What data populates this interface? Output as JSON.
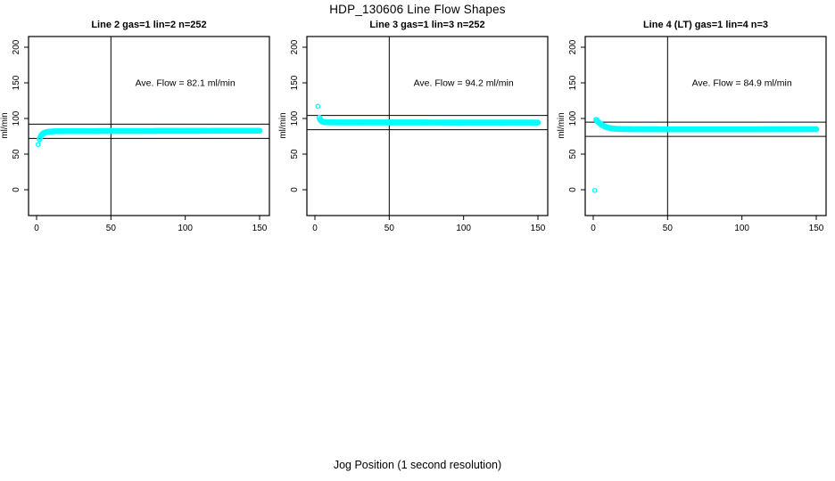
{
  "page": {
    "main_title": "HDP_130606  Line Flow Shapes",
    "x_axis_label": "Jog Position (1 second resolution)"
  },
  "colors": {
    "points": "#00FFFF",
    "axis": "#000000",
    "background": "#FFFFFF"
  },
  "chart_data": [
    {
      "type": "scatter",
      "name": "panel-line-2",
      "title": "Line 2 gas=1 lin=2 n=252",
      "annotation": "Ave. Flow =  82.1  ml/min",
      "ave_flow": 82.1,
      "ylabel": "ml/min",
      "x_ticks": [
        0,
        50,
        100,
        150
      ],
      "y_ticks": [
        0,
        50,
        100,
        150,
        200
      ],
      "xlim": [
        -6,
        156
      ],
      "ylim": [
        -36,
        215
      ],
      "vline_x": 50,
      "hlines": [
        92.1,
        72.1
      ],
      "grid": false,
      "outliers": [
        [
          1,
          63.5
        ]
      ],
      "curve": [
        [
          2,
          71
        ],
        [
          2.5,
          73.5
        ],
        [
          3,
          75.8
        ],
        [
          3.5,
          77.3
        ],
        [
          4,
          78.3
        ],
        [
          5,
          79.7
        ],
        [
          6,
          80.5
        ],
        [
          7,
          81.0
        ],
        [
          8,
          81.4
        ],
        [
          10,
          81.8
        ],
        [
          12,
          82.0
        ],
        [
          15,
          82.1
        ],
        [
          20,
          82.2
        ],
        [
          30,
          82.3
        ],
        [
          50,
          82.4
        ],
        [
          75,
          82.5
        ],
        [
          100,
          82.6
        ],
        [
          125,
          82.7
        ],
        [
          150,
          82.8
        ]
      ]
    },
    {
      "type": "scatter",
      "name": "panel-line-3",
      "title": "Line 3 gas=1 lin=3 n=252",
      "annotation": "Ave. Flow =  94.2  ml/min",
      "ave_flow": 94.2,
      "ylabel": "ml/min",
      "x_ticks": [
        0,
        50,
        100,
        150
      ],
      "y_ticks": [
        0,
        50,
        100,
        150,
        200
      ],
      "xlim": [
        -6,
        156
      ],
      "ylim": [
        -36,
        215
      ],
      "vline_x": 50,
      "hlines": [
        104.2,
        84.2
      ],
      "grid": false,
      "outliers": [
        [
          2,
          117
        ]
      ],
      "curve": [
        [
          3,
          101
        ],
        [
          3.5,
          98.7
        ],
        [
          4,
          97.2
        ],
        [
          4.5,
          96.2
        ],
        [
          5,
          95.6
        ],
        [
          6,
          95.0
        ],
        [
          7,
          94.8
        ],
        [
          8,
          94.7
        ],
        [
          10,
          94.6
        ],
        [
          15,
          94.5
        ],
        [
          20,
          94.5
        ],
        [
          30,
          94.5
        ],
        [
          50,
          94.4
        ],
        [
          75,
          94.4
        ],
        [
          100,
          94.3
        ],
        [
          125,
          94.3
        ],
        [
          150,
          94.3
        ]
      ]
    },
    {
      "type": "scatter",
      "name": "panel-line-4",
      "title": "Line 4 (LT) gas=1 lin=4 n=3",
      "annotation": "Ave. Flow =  84.9  ml/min",
      "ave_flow": 84.9,
      "ylabel": "ml/min",
      "x_ticks": [
        0,
        50,
        100,
        150
      ],
      "y_ticks": [
        0,
        50,
        100,
        150,
        200
      ],
      "xlim": [
        -6,
        156
      ],
      "ylim": [
        -36,
        215
      ],
      "vline_x": 50,
      "hlines": [
        94.9,
        74.9
      ],
      "grid": false,
      "outliers": [
        [
          1,
          -1
        ]
      ],
      "curve": [
        [
          2,
          98
        ],
        [
          3,
          95.8
        ],
        [
          4,
          93.9
        ],
        [
          5,
          92.2
        ],
        [
          6,
          90.8
        ],
        [
          7,
          89.6
        ],
        [
          8,
          88.6
        ],
        [
          9,
          87.8
        ],
        [
          10,
          87.1
        ],
        [
          12,
          86.2
        ],
        [
          15,
          85.5
        ],
        [
          20,
          85.1
        ],
        [
          25,
          85.0
        ],
        [
          30,
          84.9
        ],
        [
          40,
          84.9
        ],
        [
          50,
          84.8
        ],
        [
          75,
          84.8
        ],
        [
          100,
          84.8
        ],
        [
          125,
          84.9
        ],
        [
          150,
          85.0
        ]
      ]
    }
  ]
}
